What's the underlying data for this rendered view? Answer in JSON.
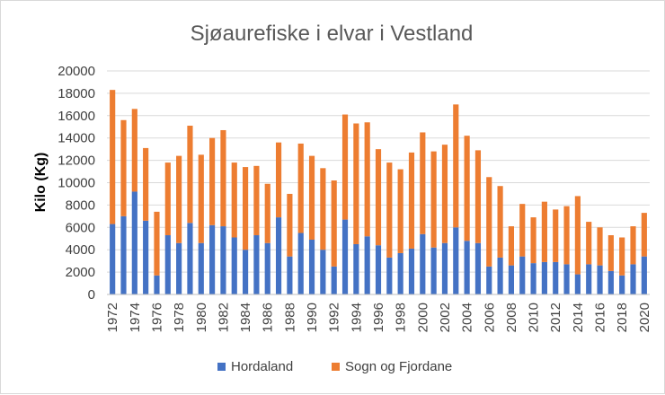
{
  "chart_data": {
    "type": "bar",
    "stacked": true,
    "title": "Sjøaurefiske i elvar i Vestland",
    "xlabel": "",
    "ylabel": "Kilo (Kg)",
    "ylim": [
      0,
      20000
    ],
    "yticks": [
      "0",
      "2000",
      "4000",
      "6000",
      "8000",
      "10000",
      "12000",
      "14000",
      "16000",
      "18000",
      "20000"
    ],
    "grid": true,
    "legend_position": "bottom",
    "categories": [
      "1972",
      "1973",
      "1974",
      "1975",
      "1976",
      "1977",
      "1978",
      "1979",
      "1980",
      "1981",
      "1982",
      "1983",
      "1984",
      "1985",
      "1986",
      "1987",
      "1988",
      "1989",
      "1990",
      "1991",
      "1992",
      "1993",
      "1994",
      "1995",
      "1996",
      "1997",
      "1998",
      "1999",
      "2000",
      "2001",
      "2002",
      "2003",
      "2004",
      "2005",
      "2006",
      "2007",
      "2008",
      "2009",
      "2010",
      "2011",
      "2012",
      "2013",
      "2014",
      "2015",
      "2016",
      "2017",
      "2018",
      "2019",
      "2020"
    ],
    "x_tick_labels": [
      "1972",
      "1974",
      "1976",
      "1978",
      "1980",
      "1982",
      "1984",
      "1986",
      "1988",
      "1990",
      "1992",
      "1994",
      "1996",
      "1998",
      "2000",
      "2002",
      "2004",
      "2006",
      "2008",
      "2010",
      "2012",
      "2014",
      "2016",
      "2018",
      "2020"
    ],
    "series": [
      {
        "name": "Hordaland",
        "color": "#4472c4",
        "values": [
          6300,
          7000,
          9200,
          6600,
          1700,
          5300,
          4600,
          6400,
          4600,
          6200,
          6100,
          5100,
          4000,
          5300,
          4600,
          6900,
          3400,
          5500,
          4900,
          4000,
          2500,
          6700,
          4500,
          5200,
          4400,
          3300,
          3700,
          4100,
          5400,
          4200,
          4600,
          6000,
          4800,
          4600,
          2500,
          3300,
          2600,
          3400,
          2800,
          2900,
          2900,
          2700,
          1800,
          2700,
          2600,
          2100,
          1700,
          2700,
          3400
        ]
      },
      {
        "name": "Sogn og Fjordane",
        "color": "#ed7d31",
        "values": [
          12000,
          8600,
          7400,
          6500,
          5700,
          6500,
          7800,
          8700,
          7900,
          7800,
          8600,
          6700,
          7400,
          6200,
          5300,
          6700,
          5600,
          8000,
          7500,
          7300,
          7700,
          9400,
          10800,
          10200,
          8600,
          8500,
          7500,
          8600,
          9100,
          8600,
          8800,
          11000,
          9400,
          8300,
          8000,
          6400,
          3500,
          4700,
          4100,
          5400,
          4700,
          5200,
          7000,
          3800,
          3400,
          3200,
          3400,
          3400,
          3900
        ]
      }
    ]
  }
}
